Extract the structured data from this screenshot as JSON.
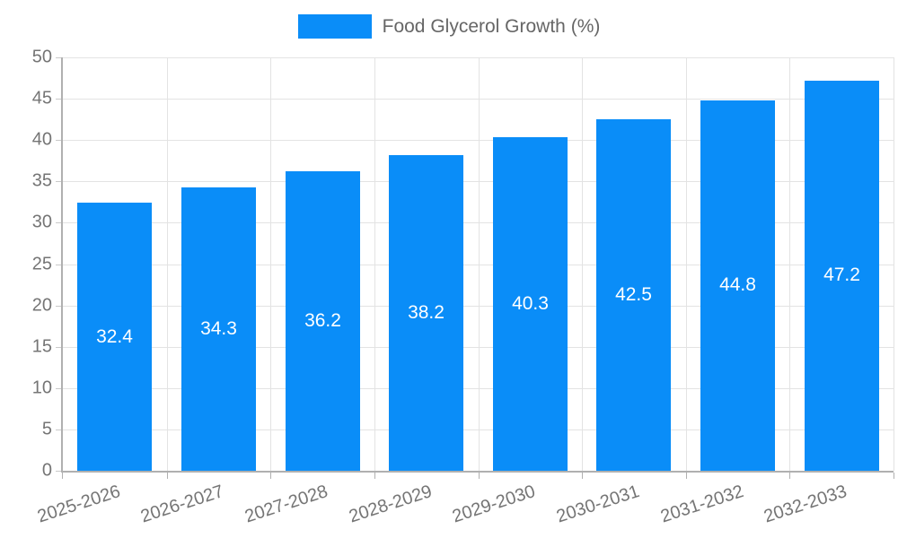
{
  "legend": {
    "label": "Food Glycerol Growth (%)"
  },
  "colors": {
    "bar": "#0a8df8",
    "grid": "#e3e3e3",
    "axis": "#b0b0b0",
    "tick_text": "#757575",
    "legend_text": "#666666",
    "bar_label_text": "#ffffff"
  },
  "chart_data": {
    "type": "bar",
    "title": "",
    "categories": [
      "2025-2026",
      "2026-2027",
      "2027-2028",
      "2028-2029",
      "2029-2030",
      "2030-2031",
      "2031-2032",
      "2032-2033"
    ],
    "values": [
      32.4,
      34.3,
      36.2,
      38.2,
      40.3,
      42.5,
      44.8,
      47.2
    ],
    "series_name": "Food Glycerol Growth (%)",
    "xlabel": "",
    "ylabel": "",
    "ylim": [
      0,
      50
    ],
    "ytick_step": 5,
    "ytick_labels": [
      "0",
      "5",
      "10",
      "15",
      "20",
      "25",
      "30",
      "35",
      "40",
      "45",
      "50"
    ],
    "grid": true,
    "legend_position": "top",
    "value_labels": "inside-center",
    "xtick_rotation_deg": -18
  }
}
